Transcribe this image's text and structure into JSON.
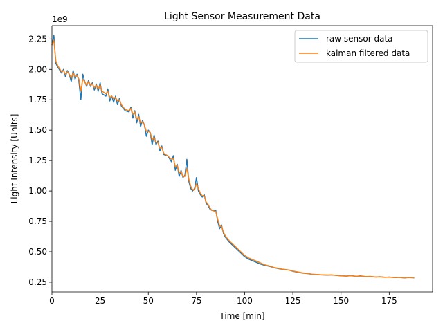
{
  "chart_data": {
    "type": "line",
    "title": "Light Sensor Measurement Data",
    "xlabel": "Time [min]",
    "ylabel": "Light Intensity [Units]",
    "offset_text": "1e9",
    "xlim": [
      0,
      197.5
    ],
    "ylim": [
      0.17,
      2.36
    ],
    "xticks": [
      0,
      25,
      50,
      75,
      100,
      125,
      150,
      175
    ],
    "xtick_labels": [
      "0",
      "25",
      "50",
      "75",
      "100",
      "125",
      "150",
      "175"
    ],
    "yticks": [
      0.25,
      0.5,
      0.75,
      1.0,
      1.25,
      1.5,
      1.75,
      2.0,
      2.25
    ],
    "ytick_labels": [
      "0.25",
      "0.50",
      "0.75",
      "1.00",
      "1.25",
      "1.50",
      "1.75",
      "2.00",
      "2.25"
    ],
    "grid": false,
    "legend_position": "top-right",
    "series": [
      {
        "name": "raw sensor data",
        "color": "#1f77b4",
        "x": [
          0,
          1,
          2,
          3,
          5,
          6,
          7,
          8,
          9,
          10,
          11,
          12,
          13,
          14,
          15,
          16,
          17,
          18,
          19,
          20,
          21,
          22,
          23,
          24,
          25,
          26,
          28,
          29,
          30,
          31,
          32,
          33,
          34,
          35,
          36,
          38,
          40,
          41,
          42,
          43,
          44,
          45,
          46,
          47,
          48,
          49,
          50,
          51,
          52,
          53,
          54,
          55,
          56,
          57,
          58,
          60,
          62,
          63,
          64,
          65,
          66,
          67,
          68,
          69,
          70,
          71,
          72,
          73,
          74,
          75,
          76,
          77,
          78,
          79,
          80,
          81,
          82,
          83,
          85,
          86,
          87,
          88,
          89,
          90,
          92,
          94,
          96,
          98,
          100,
          102,
          105,
          108,
          110,
          113,
          115,
          118,
          120,
          123,
          125,
          128,
          130,
          133,
          135,
          138,
          140,
          143,
          145,
          148,
          150,
          153,
          155,
          158,
          160,
          163,
          165,
          168,
          170,
          173,
          175,
          178,
          180,
          183,
          185,
          188
        ],
        "y": [
          2.2,
          2.28,
          2.05,
          2.02,
          1.97,
          2.0,
          1.94,
          1.99,
          1.96,
          1.9,
          1.99,
          1.92,
          1.96,
          1.9,
          1.75,
          1.96,
          1.9,
          1.86,
          1.91,
          1.86,
          1.89,
          1.83,
          1.88,
          1.82,
          1.89,
          1.8,
          1.78,
          1.84,
          1.74,
          1.78,
          1.73,
          1.78,
          1.71,
          1.76,
          1.7,
          1.66,
          1.65,
          1.69,
          1.6,
          1.66,
          1.56,
          1.63,
          1.53,
          1.58,
          1.54,
          1.45,
          1.5,
          1.48,
          1.38,
          1.46,
          1.38,
          1.41,
          1.33,
          1.37,
          1.3,
          1.29,
          1.24,
          1.29,
          1.17,
          1.22,
          1.12,
          1.17,
          1.11,
          1.13,
          1.26,
          1.08,
          1.02,
          1.0,
          1.02,
          1.11,
          1.0,
          0.97,
          0.95,
          0.97,
          0.9,
          0.88,
          0.85,
          0.84,
          0.84,
          0.75,
          0.69,
          0.72,
          0.65,
          0.62,
          0.58,
          0.55,
          0.52,
          0.49,
          0.46,
          0.44,
          0.42,
          0.4,
          0.39,
          0.38,
          0.37,
          0.36,
          0.355,
          0.35,
          0.34,
          0.33,
          0.325,
          0.32,
          0.315,
          0.312,
          0.31,
          0.308,
          0.31,
          0.305,
          0.302,
          0.3,
          0.305,
          0.298,
          0.302,
          0.295,
          0.297,
          0.292,
          0.295,
          0.29,
          0.292,
          0.288,
          0.29,
          0.285,
          0.29,
          0.286
        ]
      },
      {
        "name": "kalman filtered data",
        "color": "#ff7f0e",
        "x": [
          0,
          1,
          2,
          3,
          5,
          6,
          7,
          8,
          9,
          10,
          11,
          12,
          13,
          14,
          15,
          16,
          17,
          18,
          19,
          20,
          21,
          22,
          23,
          24,
          25,
          26,
          28,
          29,
          30,
          31,
          32,
          33,
          34,
          35,
          36,
          38,
          40,
          41,
          42,
          43,
          44,
          45,
          46,
          47,
          48,
          49,
          50,
          51,
          52,
          53,
          54,
          55,
          56,
          57,
          58,
          60,
          62,
          63,
          64,
          65,
          66,
          67,
          68,
          69,
          70,
          71,
          72,
          73,
          74,
          75,
          76,
          77,
          78,
          79,
          80,
          81,
          82,
          83,
          85,
          86,
          87,
          88,
          89,
          90,
          92,
          94,
          96,
          98,
          100,
          102,
          105,
          108,
          110,
          113,
          115,
          118,
          120,
          123,
          125,
          128,
          130,
          133,
          135,
          138,
          140,
          143,
          145,
          148,
          150,
          153,
          155,
          158,
          160,
          163,
          165,
          168,
          170,
          173,
          175,
          178,
          180,
          183,
          185,
          188
        ],
        "y": [
          2.2,
          2.24,
          2.07,
          2.03,
          1.98,
          1.99,
          1.96,
          1.98,
          1.96,
          1.93,
          1.97,
          1.94,
          1.95,
          1.92,
          1.82,
          1.92,
          1.9,
          1.87,
          1.9,
          1.87,
          1.88,
          1.85,
          1.87,
          1.84,
          1.87,
          1.82,
          1.8,
          1.82,
          1.77,
          1.78,
          1.76,
          1.77,
          1.74,
          1.75,
          1.71,
          1.67,
          1.66,
          1.68,
          1.63,
          1.65,
          1.59,
          1.61,
          1.56,
          1.57,
          1.54,
          1.49,
          1.49,
          1.48,
          1.42,
          1.44,
          1.4,
          1.4,
          1.35,
          1.36,
          1.31,
          1.29,
          1.26,
          1.27,
          1.2,
          1.21,
          1.15,
          1.16,
          1.12,
          1.12,
          1.19,
          1.1,
          1.04,
          1.01,
          1.01,
          1.06,
          1.02,
          0.98,
          0.96,
          0.96,
          0.91,
          0.89,
          0.86,
          0.84,
          0.83,
          0.77,
          0.71,
          0.71,
          0.66,
          0.63,
          0.59,
          0.56,
          0.53,
          0.5,
          0.47,
          0.45,
          0.43,
          0.41,
          0.395,
          0.383,
          0.372,
          0.362,
          0.356,
          0.35,
          0.342,
          0.333,
          0.327,
          0.321,
          0.316,
          0.313,
          0.311,
          0.309,
          0.309,
          0.306,
          0.303,
          0.301,
          0.303,
          0.299,
          0.301,
          0.296,
          0.297,
          0.293,
          0.294,
          0.291,
          0.291,
          0.289,
          0.289,
          0.286,
          0.288,
          0.286
        ]
      }
    ]
  }
}
